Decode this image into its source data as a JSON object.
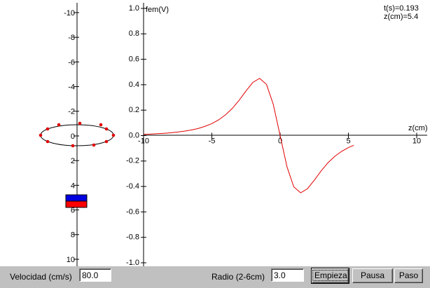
{
  "chart_data": {
    "type": "line",
    "x_label": "z(cm)",
    "y_label": "fem(V)",
    "x": [
      -10,
      -9.5,
      -9,
      -8.5,
      -8,
      -7.5,
      -7,
      -6.5,
      -6,
      -5.5,
      -5,
      -4.5,
      -4,
      -3.5,
      -3,
      -2.5,
      -2,
      -1.5,
      -1,
      -0.5,
      0,
      0.5,
      1,
      1.5,
      2,
      2.5,
      3,
      3.5,
      4,
      4.5,
      5,
      5.4
    ],
    "values": [
      0.01,
      0.012,
      0.015,
      0.018,
      0.022,
      0.028,
      0.035,
      0.044,
      0.056,
      0.073,
      0.094,
      0.124,
      0.163,
      0.214,
      0.278,
      0.351,
      0.418,
      0.45,
      0.403,
      0.245,
      0,
      -0.245,
      -0.403,
      -0.45,
      -0.418,
      -0.351,
      -0.278,
      -0.214,
      -0.163,
      -0.124,
      -0.094,
      -0.076
    ],
    "color": "#e00000",
    "xlim": [
      -10,
      10
    ],
    "xticks": [
      -10,
      -5,
      0,
      5,
      10
    ],
    "ylim": [
      -1,
      1
    ],
    "yticks": [
      {
        "value": -1,
        "label": "-1.0"
      },
      -0.8,
      -0.6,
      -0.4,
      -0.2,
      {
        "value": 0,
        "label": "0.0"
      },
      0.2,
      0.4,
      0.6,
      0.8,
      {
        "value": 1,
        "label": "1.0"
      }
    ]
  },
  "status": {
    "time": "t(s)=0.193",
    "position": "z(cm)=5.4"
  },
  "position_scale": {
    "lim": [
      -10,
      10
    ],
    "ticks": [
      -10,
      -8,
      -6,
      -4,
      -2,
      0,
      2,
      4,
      6,
      8,
      10
    ]
  },
  "controls": {
    "velocity_label": "Velocidad (cm/s)",
    "velocity_value": "80.0",
    "radius_label": "Radio (2-6cm)",
    "radius_value": "3.0",
    "buttons": [
      "Empieza",
      "Pausa",
      "Paso"
    ]
  }
}
